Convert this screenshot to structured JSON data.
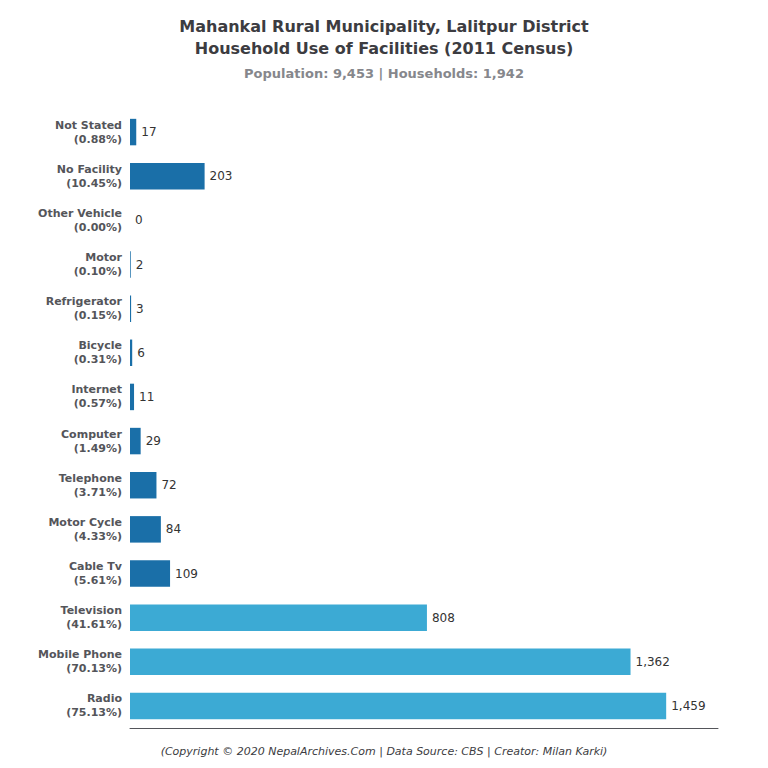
{
  "chart_data": {
    "type": "bar",
    "orientation": "horizontal",
    "title": "Mahankal Rural Municipality, Lalitpur District\nHousehold Use of Facilities (2011 Census)",
    "subtitle": "Population: 9,453 | Households: 1,942",
    "annotations": [
      "(Copyright © 2020 NepalArchives.Com | Data Source: CBS | Creator: Milan Karki)"
    ],
    "categories": [
      "Not Stated\n(0.88%)",
      "No Facility\n(10.45%)",
      "Other Vehicle\n(0.00%)",
      "Motor\n(0.10%)",
      "Refrigerator\n(0.15%)",
      "Bicycle\n(0.31%)",
      "Internet\n(0.57%)",
      "Computer\n(1.49%)",
      "Telephone\n(3.71%)",
      "Motor Cycle\n(4.33%)",
      "Cable Tv\n(5.61%)",
      "Television\n(41.61%)",
      "Mobile Phone\n(70.13%)",
      "Radio\n(75.13%)"
    ],
    "values": [
      17,
      203,
      0,
      2,
      3,
      6,
      11,
      29,
      72,
      84,
      109,
      808,
      1362,
      1459
    ],
    "value_labels": [
      "17",
      "203",
      "0",
      "2",
      "3",
      "6",
      "11",
      "29",
      "72",
      "84",
      "109",
      "808",
      "1,362",
      "1,459"
    ],
    "colors": [
      "#1a6fa8",
      "#1a6fa8",
      "#1a6fa8",
      "#1a6fa8",
      "#1a6fa8",
      "#1a6fa8",
      "#1a6fa8",
      "#1a6fa8",
      "#1a6fa8",
      "#1a6fa8",
      "#1a6fa8",
      "#3caad4",
      "#3caad4",
      "#3caad4"
    ],
    "xlim": [
      0,
      1600
    ],
    "data_labels": true,
    "tick_labels": "y",
    "grid": false
  }
}
